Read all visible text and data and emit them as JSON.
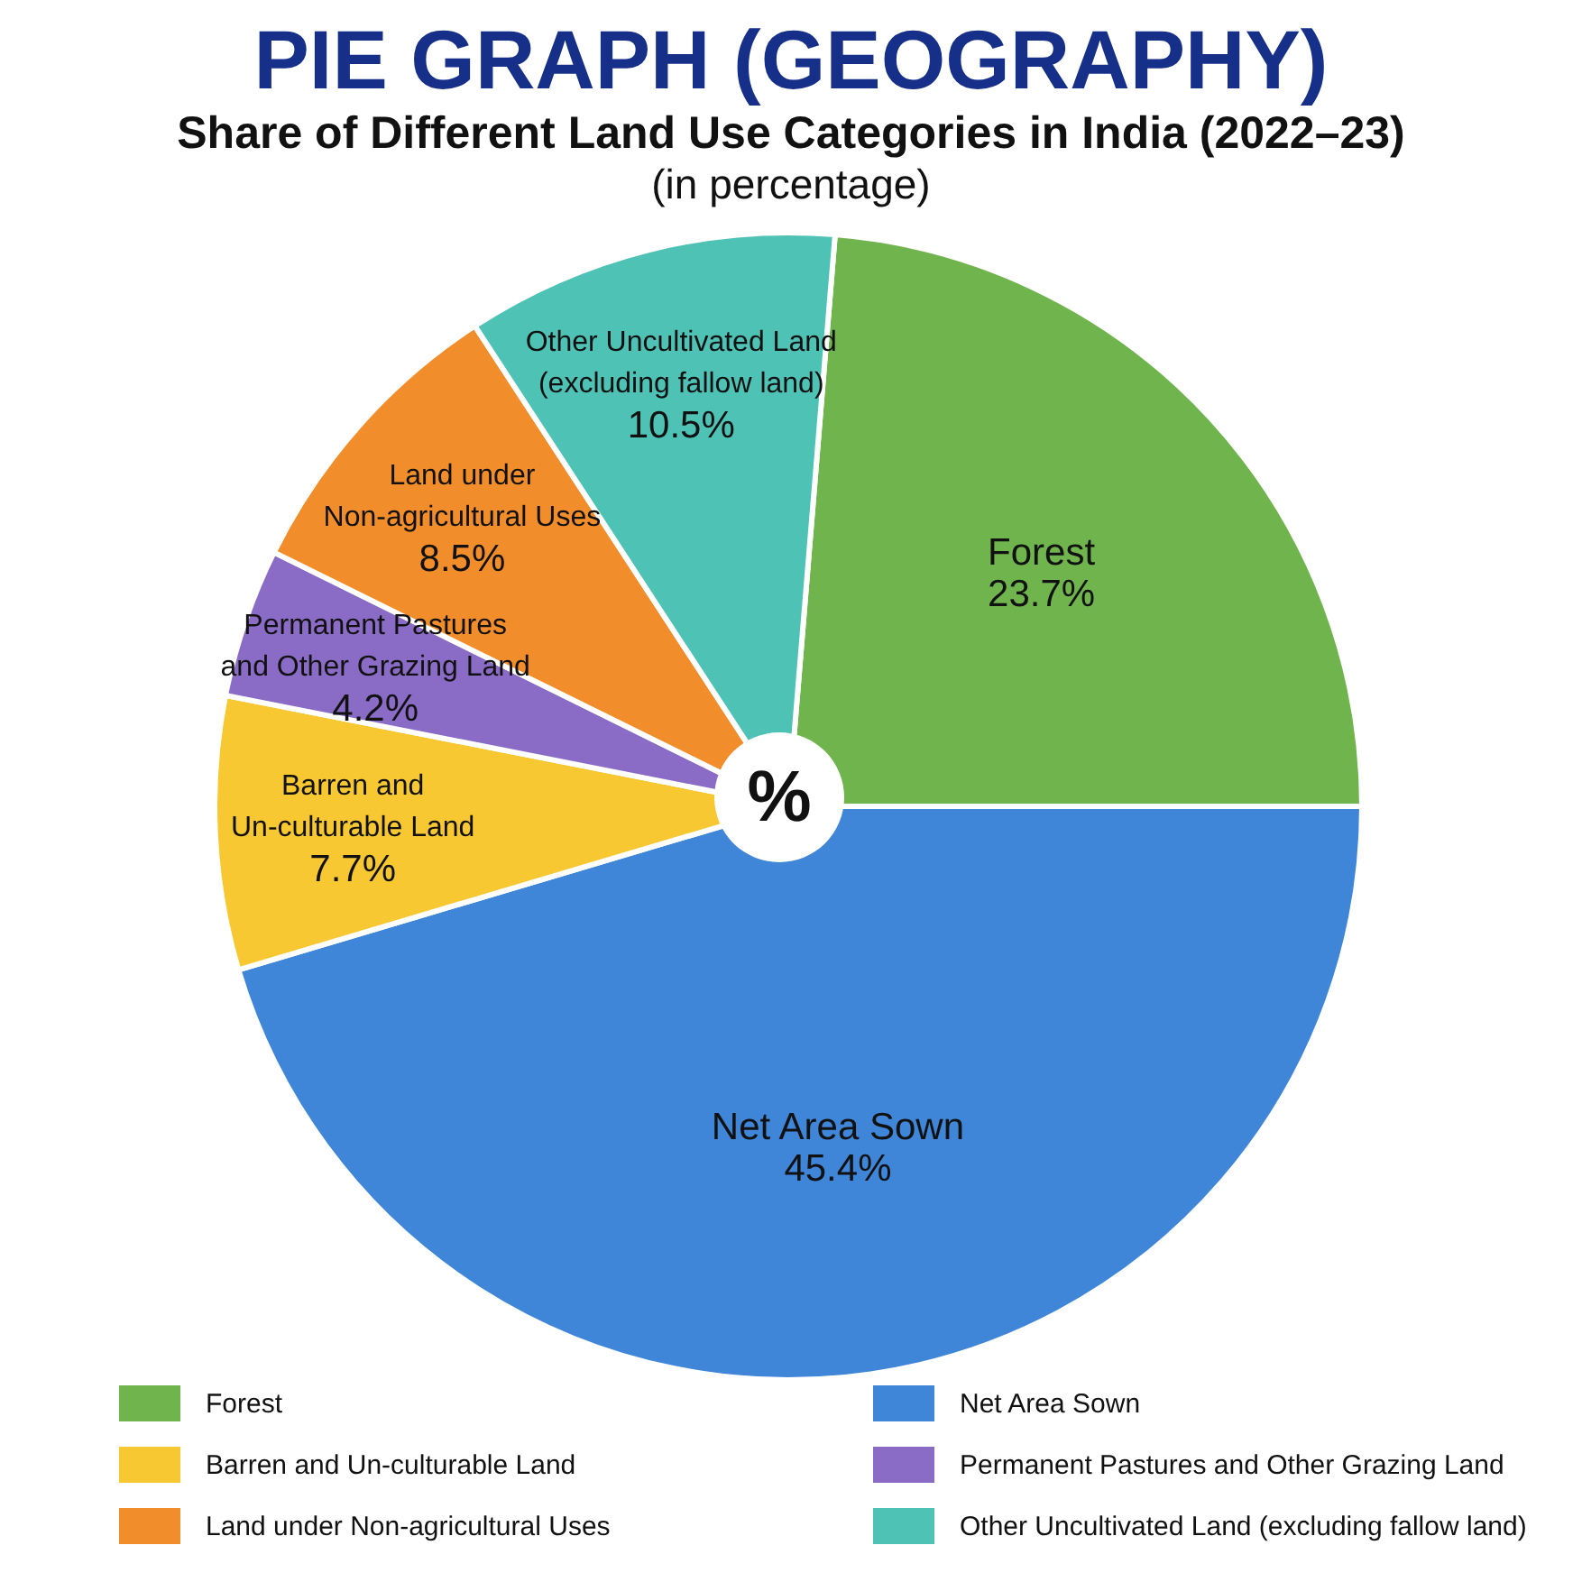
{
  "chart_data": {
    "type": "pie",
    "title": "PIE GRAPH (GEOGRAPHY)",
    "subtitle": "Share of Different Land Use Categories in India (2022–23)\n(in percentage)",
    "categories": [
      "Forest",
      "Net Area Sown",
      "Barren and Un-culturable Land",
      "Permanent Pastures and Other Grazing Land",
      "Land under Non-agricultural Uses",
      "Other Uncultivated Land (excluding fallow land)"
    ],
    "values": [
      23.7,
      45.4,
      7.7,
      4.2,
      8.5,
      10.5
    ],
    "colors": [
      "#70b44e",
      "#3f86d9",
      "#f7c832",
      "#8a6cc6",
      "#f28d2b",
      "#4fc2b6"
    ],
    "value_labels": [
      "23.7%",
      "45.4%",
      "7.7%",
      "4.2%",
      "8.5%",
      "10.5%"
    ],
    "legend": "bottom",
    "annotations": [
      "%"
    ]
  }
}
